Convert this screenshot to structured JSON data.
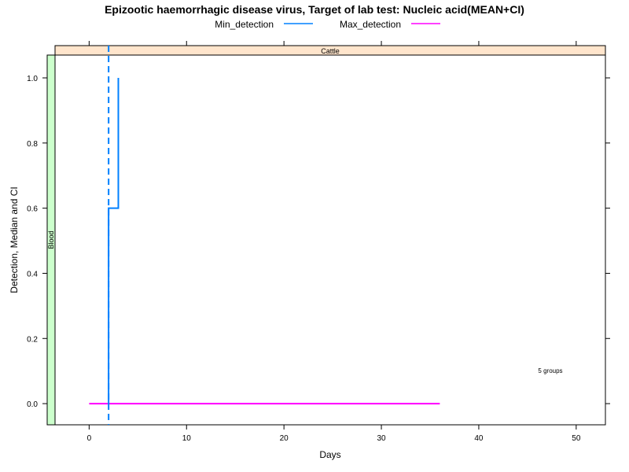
{
  "chart_data": {
    "type": "line",
    "title": "Epizootic haemorrhagic disease virus, Target of lab test: Nucleic acid(MEAN+CI)",
    "xlabel": "Days",
    "ylabel": "Detection, Median and CI",
    "xlim": [
      -3.5,
      53
    ],
    "ylim": [
      -0.065,
      1.07
    ],
    "x_ticks": [
      0,
      10,
      20,
      30,
      40,
      50
    ],
    "y_ticks": [
      0.0,
      0.2,
      0.4,
      0.6,
      0.8,
      1.0
    ],
    "x_tick_labels": [
      "0",
      "10",
      "20",
      "30",
      "40",
      "50"
    ],
    "y_tick_labels": [
      "0.0",
      "0.2",
      "0.4",
      "0.6",
      "0.8",
      "1.0"
    ],
    "grid": false,
    "legend_position": "top-center",
    "legend": [
      {
        "name": "Min_detection",
        "color": "#0080ff"
      },
      {
        "name": "Max_detection",
        "color": "#ff00ff"
      }
    ],
    "strip_top": "Cattle",
    "strip_left": "Blood",
    "annotation": "5 groups",
    "series": [
      {
        "name": "Min_detection",
        "color": "#0080ff",
        "step": true,
        "points": [
          [
            2,
            0.0
          ],
          [
            2,
            0.6
          ],
          [
            3,
            0.6
          ],
          [
            3,
            1.0
          ]
        ]
      },
      {
        "name": "Max_detection",
        "color": "#ff00ff",
        "points": [
          [
            0,
            0.0
          ],
          [
            36,
            0.0
          ]
        ]
      }
    ],
    "reference_lines": [
      {
        "axis": "x",
        "value": 2,
        "style": "dashed",
        "color": "#0080ff"
      }
    ]
  }
}
